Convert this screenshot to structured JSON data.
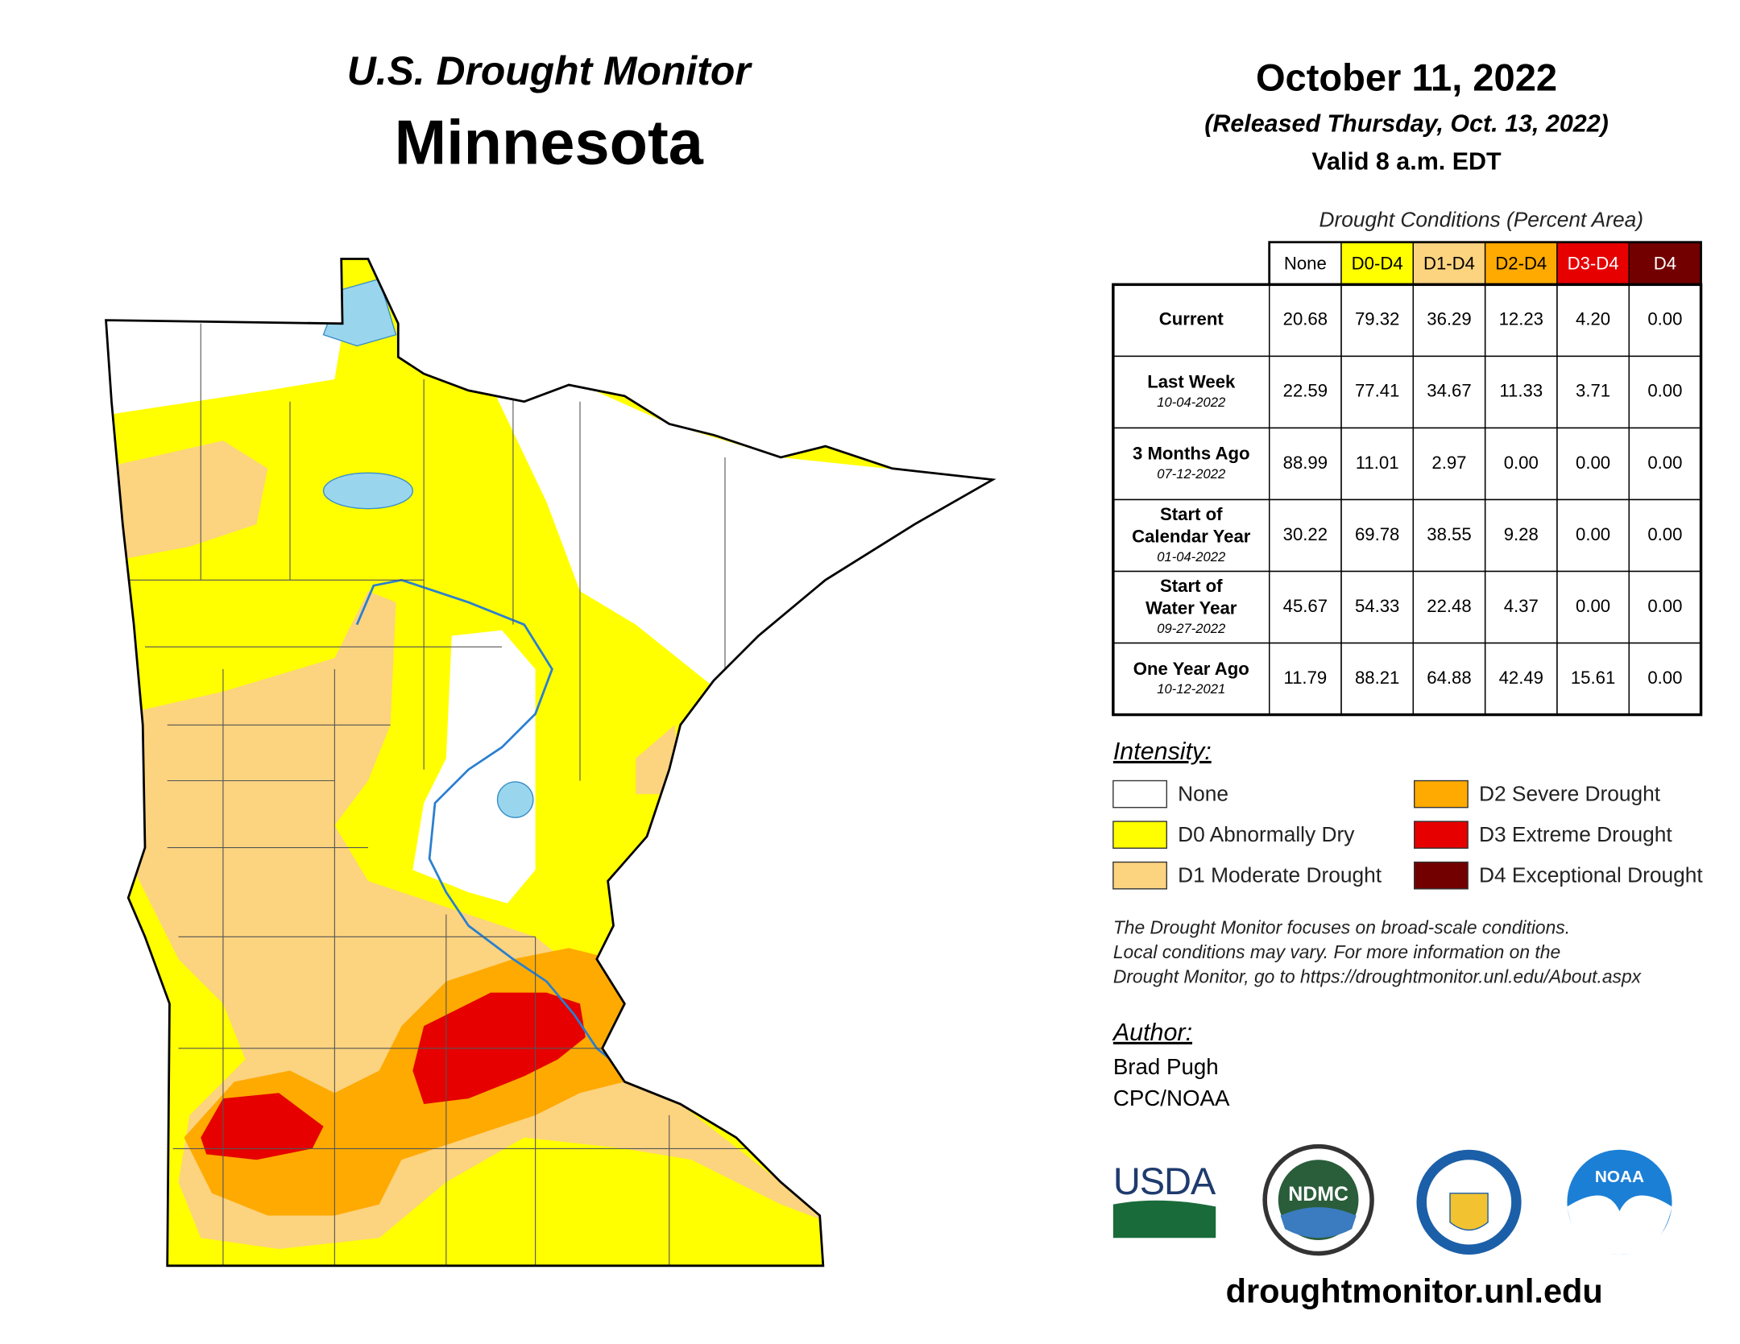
{
  "header": {
    "title": "U.S. Drought Monitor",
    "state": "Minnesota"
  },
  "date": {
    "valid_date": "October 11, 2022",
    "released": "(Released Thursday, Oct. 13, 2022)",
    "valid_time": "Valid 8 a.m. EDT"
  },
  "table": {
    "caption": "Drought Conditions (Percent Area)",
    "columns": [
      {
        "label": "None",
        "color": "#ffffff",
        "text_color": "#000000"
      },
      {
        "label": "D0-D4",
        "color": "#ffff00",
        "text_color": "#000000"
      },
      {
        "label": "D1-D4",
        "color": "#fcd37f",
        "text_color": "#000000"
      },
      {
        "label": "D2-D4",
        "color": "#ffaa00",
        "text_color": "#000000"
      },
      {
        "label": "D3-D4",
        "color": "#e60000",
        "text_color": "#ffffff"
      },
      {
        "label": "D4",
        "color": "#730000",
        "text_color": "#ffffff"
      }
    ],
    "rows": [
      {
        "label": [
          "Current"
        ],
        "values": [
          "20.68",
          "79.32",
          "36.29",
          "12.23",
          "4.20",
          "0.00"
        ]
      },
      {
        "label": [
          "Last Week"
        ],
        "date": "10-04-2022",
        "values": [
          "22.59",
          "77.41",
          "34.67",
          "11.33",
          "3.71",
          "0.00"
        ]
      },
      {
        "label": [
          "3 Months Ago"
        ],
        "date": "07-12-2022",
        "values": [
          "88.99",
          "11.01",
          "2.97",
          "0.00",
          "0.00",
          "0.00"
        ]
      },
      {
        "label": [
          "Start of",
          "Calendar Year"
        ],
        "date": "01-04-2022",
        "values": [
          "30.22",
          "69.78",
          "38.55",
          "9.28",
          "0.00",
          "0.00"
        ]
      },
      {
        "label": [
          "Start of",
          "Water Year"
        ],
        "date": "09-27-2022",
        "values": [
          "45.67",
          "54.33",
          "22.48",
          "4.37",
          "0.00",
          "0.00"
        ]
      },
      {
        "label": [
          "One Year Ago"
        ],
        "date": "10-12-2021",
        "values": [
          "11.79",
          "88.21",
          "64.88",
          "42.49",
          "15.61",
          "0.00"
        ]
      }
    ]
  },
  "legend": {
    "title": "Intensity:",
    "items": [
      {
        "label": "None",
        "color": "#ffffff"
      },
      {
        "label": "D0 Abnormally Dry",
        "color": "#ffff00"
      },
      {
        "label": "D1 Moderate Drought",
        "color": "#fcd37f"
      },
      {
        "label": "D2 Severe Drought",
        "color": "#ffaa00"
      },
      {
        "label": "D3 Extreme Drought",
        "color": "#e60000"
      },
      {
        "label": "D4 Exceptional Drought",
        "color": "#730000"
      }
    ]
  },
  "note": [
    "The Drought Monitor focuses on broad-scale conditions.",
    "Local conditions may vary. For more information on the",
    "Drought Monitor, go to https://droughtmonitor.unl.edu/About.aspx"
  ],
  "author": {
    "title": "Author:",
    "lines": [
      "Brad Pugh",
      "CPC/NOAA"
    ]
  },
  "logos": [
    "USDA",
    "NDMC",
    "NOAA"
  ],
  "url": "droughtmonitor.unl.edu"
}
